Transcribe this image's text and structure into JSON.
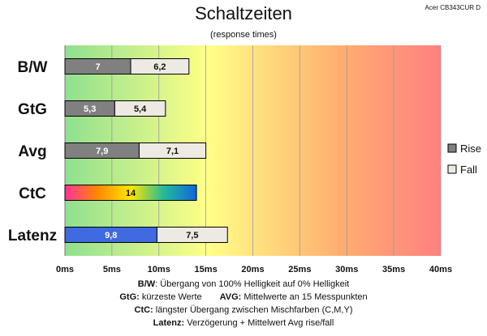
{
  "header": {
    "title": "Schaltzeiten",
    "subtitle": "(response times)",
    "device": "Acer CB343CUR D"
  },
  "colors": {
    "rise": "#808080",
    "fall": "#ECEAE2",
    "latency_rise": "#3F6AE0",
    "background_gradient": [
      "#8FE08F",
      "#FFFF88",
      "#FFB070",
      "#FF8080"
    ],
    "ctc_gradient": [
      "#FF3399",
      "#FF8800",
      "#FFE800",
      "#22BB99",
      "#1166DD"
    ]
  },
  "legend": {
    "placement": "right",
    "items": [
      {
        "key": "rise",
        "label": "Rise"
      },
      {
        "key": "fall",
        "label": "Fall"
      }
    ]
  },
  "chart_data": {
    "type": "bar",
    "orientation": "horizontal",
    "stacked": true,
    "categories": [
      "B/W",
      "GtG",
      "Avg",
      "CtC",
      "Latenz"
    ],
    "series": [
      {
        "name": "Rise",
        "values": [
          7,
          5.3,
          7.9,
          14,
          9.8
        ],
        "labels": [
          "7",
          "5,3",
          "7,9",
          "14",
          "9,8"
        ]
      },
      {
        "name": "Fall",
        "values": [
          6.2,
          5.4,
          7.1,
          null,
          7.5
        ],
        "labels": [
          "6,2",
          "5,4",
          "7,1",
          "",
          "7,5"
        ]
      }
    ],
    "xlim": [
      0,
      40
    ],
    "xticks": [
      0,
      5,
      10,
      15,
      20,
      25,
      30,
      35,
      40
    ],
    "xtick_labels": [
      "0ms",
      "5ms",
      "10ms",
      "15ms",
      "20ms",
      "25ms",
      "30ms",
      "35ms",
      "40ms"
    ],
    "grid": true
  },
  "notes": {
    "bw_key": "B/W",
    "bw_text": ":  Übergang von 100% Helligkeit auf 0% Helligkeit",
    "gtg_key": "GtG:",
    "gtg_text": " kürzeste  Werte",
    "avg_key": "AVG:",
    "avg_text": " Mittelwerte  an 15 Messpunkten",
    "ctc_key": "CtC:",
    "ctc_text": " längster Übergang  zwischen Mischfarben  (C,M,Y)",
    "latenz_key": "Latenz:",
    "latenz_text": " Verzögerung  + Mittelwert  Avg rise/fall"
  }
}
